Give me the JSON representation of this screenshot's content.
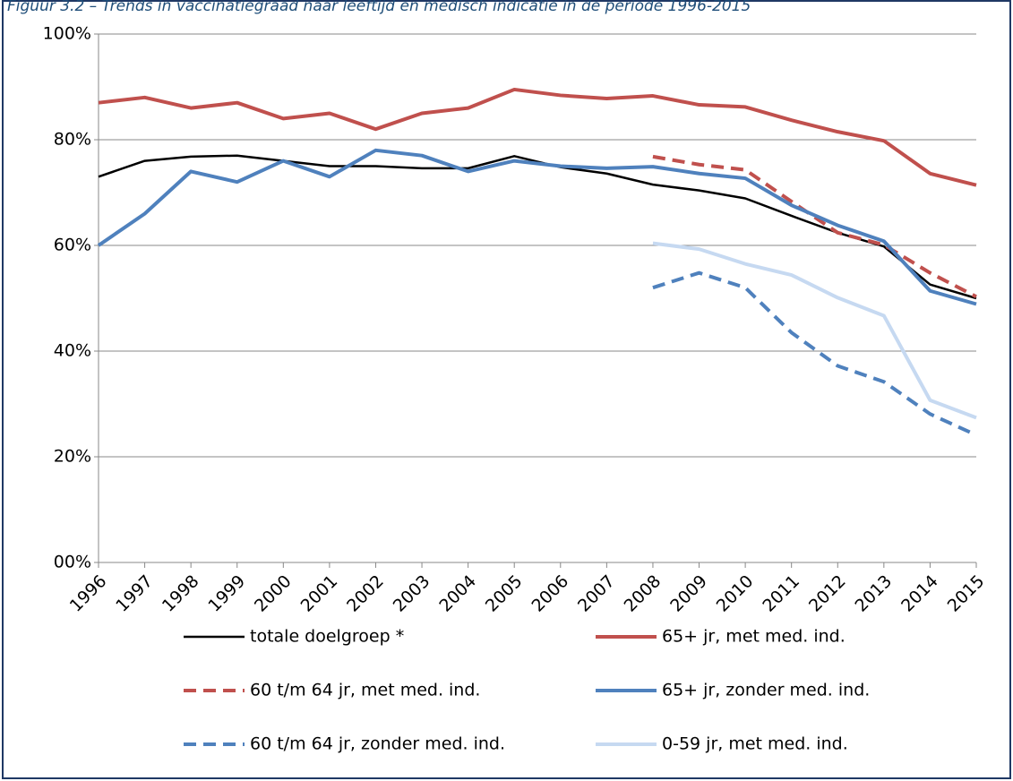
{
  "chart_data": {
    "type": "line",
    "title": "Figuur 3.2 – Trends in vaccinatiegraad naar leeftijd en medisch indicatie in de periode 1996-2015",
    "categories": [
      "1996",
      "1997",
      "1998",
      "1999",
      "2000",
      "2001",
      "2002",
      "2003",
      "2004",
      "2005",
      "2006",
      "2007",
      "2008",
      "2009",
      "2010",
      "2011",
      "2012",
      "2013",
      "2014",
      "2015"
    ],
    "ylim": [
      0,
      100
    ],
    "yticks": [
      {
        "value": 0,
        "label": "00%"
      },
      {
        "value": 20,
        "label": "20%"
      },
      {
        "value": 40,
        "label": "40%"
      },
      {
        "value": 60,
        "label": "60%"
      },
      {
        "value": 80,
        "label": "80%"
      },
      {
        "value": 100,
        "label": "100%"
      }
    ],
    "grid": true,
    "series": [
      {
        "name": "totale doelgroep *",
        "color": "#000000",
        "style": "solid",
        "width": 2.5,
        "values": [
          73,
          76,
          76.8,
          77,
          76,
          75,
          75,
          74.6,
          74.6,
          76.9,
          74.8,
          73.6,
          71.5,
          70.4,
          68.9,
          65.6,
          62.4,
          59.8,
          52.6,
          50
        ]
      },
      {
        "name": "65+ jr, met med. ind.",
        "color": "#c0504d",
        "style": "solid",
        "width": 4,
        "values": [
          87,
          88,
          86,
          87,
          84,
          85,
          82,
          85,
          86,
          89.5,
          88.4,
          87.8,
          88.3,
          86.6,
          86.2,
          83.7,
          81.5,
          79.8,
          73.6,
          71.4
        ]
      },
      {
        "name": "60 t/m 64 jr, met med. ind.",
        "color": "#c0504d",
        "style": "dashed",
        "width": 4,
        "values": [
          null,
          null,
          null,
          null,
          null,
          null,
          null,
          null,
          null,
          null,
          null,
          null,
          76.8,
          75.3,
          74.3,
          68.3,
          62.4,
          60.1,
          54.8,
          50.3
        ]
      },
      {
        "name": "65+ jr, zonder med. ind.",
        "color": "#4f81bd",
        "style": "solid",
        "width": 4,
        "values": [
          60,
          66,
          74,
          72,
          76,
          73,
          78,
          77,
          74,
          76,
          75,
          74.6,
          74.9,
          73.6,
          72.7,
          67.6,
          63.8,
          60.8,
          51.4,
          48.9
        ]
      },
      {
        "name": "60 t/m 64 jr, zonder med. ind.",
        "color": "#4f81bd",
        "style": "dashed",
        "width": 4,
        "values": [
          null,
          null,
          null,
          null,
          null,
          null,
          null,
          null,
          null,
          null,
          null,
          null,
          52,
          54.8,
          52,
          43.5,
          37.2,
          34.2,
          28.1,
          24.1
        ]
      },
      {
        "name": "0-59 jr, met med. ind.",
        "color": "#c6d9f1",
        "style": "solid",
        "width": 4,
        "values": [
          null,
          null,
          null,
          null,
          null,
          null,
          null,
          null,
          null,
          null,
          null,
          null,
          60.4,
          59.3,
          56.5,
          54.4,
          50.1,
          46.7,
          30.7,
          27.4
        ]
      }
    ]
  }
}
